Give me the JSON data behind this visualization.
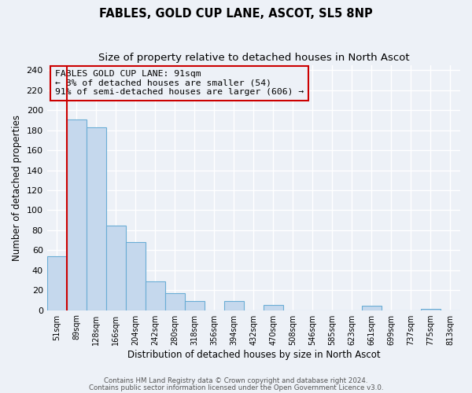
{
  "title": "FABLES, GOLD CUP LANE, ASCOT, SL5 8NP",
  "subtitle": "Size of property relative to detached houses in North Ascot",
  "xlabel": "Distribution of detached houses by size in North Ascot",
  "ylabel": "Number of detached properties",
  "footer1": "Contains HM Land Registry data © Crown copyright and database right 2024.",
  "footer2": "Contains public sector information licensed under the Open Government Licence v3.0.",
  "bin_labels": [
    "51sqm",
    "89sqm",
    "128sqm",
    "166sqm",
    "204sqm",
    "242sqm",
    "280sqm",
    "318sqm",
    "356sqm",
    "394sqm",
    "432sqm",
    "470sqm",
    "508sqm",
    "546sqm",
    "585sqm",
    "623sqm",
    "661sqm",
    "699sqm",
    "737sqm",
    "775sqm",
    "813sqm"
  ],
  "bar_values": [
    54,
    191,
    183,
    85,
    68,
    29,
    17,
    9,
    0,
    9,
    0,
    5,
    0,
    0,
    0,
    0,
    4,
    0,
    0,
    1,
    0
  ],
  "bar_color": "#c5d8ed",
  "bar_edge_color": "#6aadd5",
  "vline_color": "#cc0000",
  "annotation_title": "FABLES GOLD CUP LANE: 91sqm",
  "annotation_line1": "← 8% of detached houses are smaller (54)",
  "annotation_line2": "91% of semi-detached houses are larger (606) →",
  "annotation_box_edge_color": "#cc0000",
  "ylim": [
    0,
    245
  ],
  "yticks": [
    0,
    20,
    40,
    60,
    80,
    100,
    120,
    140,
    160,
    180,
    200,
    220,
    240
  ],
  "background_color": "#edf1f7",
  "grid_color": "#ffffff",
  "title_fontsize": 10.5,
  "subtitle_fontsize": 9.5
}
